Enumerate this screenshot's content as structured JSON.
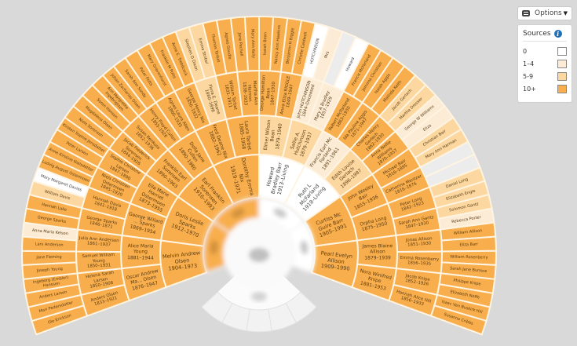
{
  "options": {
    "label": "Options",
    "icon": "sliders-icon",
    "caret": "▼"
  },
  "legend": {
    "title": "Sources",
    "info_icon": "i",
    "items": [
      {
        "label": "0",
        "color": "#ffffff"
      },
      {
        "label": "1–4",
        "color": "#fcecd6"
      },
      {
        "label": "5-9",
        "color": "#fcd8a0"
      },
      {
        "label": "10+",
        "color": "#f8ae4c"
      }
    ]
  },
  "colors": {
    "0": "#ffffff",
    "1-4": "#fcecd6",
    "5-9": "#fcd8a0",
    "10+": "#f8ae4c",
    "none": "#ececec",
    "background": "#d9d9d9"
  },
  "fan": {
    "ring_a": [
      {
        "sources": "10+"
      },
      {
        "sources": "10+"
      },
      {
        "sources": "0"
      },
      {
        "sources": "0"
      }
    ],
    "ring_b": [
      {
        "name": "Melvin Andrew Olsen",
        "dates": "1904–1973",
        "sources": "10+"
      },
      {
        "name": "Doris Leslie Sparks",
        "dates": "1912–1970",
        "sources": "10+"
      },
      {
        "name": "Earl Franklin Sorensen",
        "dates": "1916–1993",
        "sources": "10+"
      },
      {
        "name": "Dorothy Emma Nix",
        "dates": "1919–1971",
        "sources": "10+"
      },
      {
        "name": "Howard Bradley Barr",
        "dates": "1913–Living",
        "sources": "0"
      },
      {
        "name": "Ruth L McFarland",
        "dates": "1918–Living",
        "sources": "0"
      },
      {
        "name": "Curtiss Mc Guire Barr",
        "dates": "1905–1991",
        "sources": "10+"
      },
      {
        "name": "Pearl Evelyn Allison",
        "dates": "1909–1990",
        "sources": "10+"
      }
    ],
    "ring_c": [
      {
        "name": "Oscar Andrew Ma... Olsen",
        "dates": "1876–1947",
        "sources": "10+"
      },
      {
        "name": "Alice Maria Young",
        "dates": "1881–1944",
        "sources": "10+"
      },
      {
        "name": "George Willard ... Sparks",
        "dates": "1869–1954",
        "sources": "10+"
      },
      {
        "name": "Ella Marie Harriet Ostermoen",
        "dates": "1873–1955",
        "sources": "10+"
      },
      {
        "name": "Franklin Earl Sorensen",
        "dates": "1890–1963",
        "sources": "10+"
      },
      {
        "name": "Della Jane Cullen",
        "dates": "1890–1980",
        "sources": "10+"
      },
      {
        "name": "Fred Deane Nix",
        "dates": "1882–1962",
        "sources": "10+"
      },
      {
        "name": "Laura Tarbet",
        "dates": "1885–1958",
        "sources": "10+"
      },
      {
        "name": "Elmer Wilson Bean",
        "dates": "1879–1940",
        "sources": "5-9"
      },
      {
        "name": "Sallie A. Hutchinson",
        "dates": "1879–1937",
        "sources": "5-9"
      },
      {
        "name": "Francis Earl Mc Farland",
        "dates": "1891–1961",
        "sources": "1-4"
      },
      {
        "name": "Edith Louise Gerlach",
        "dates": "1896–1987",
        "sources": "5-9"
      },
      {
        "name": "John Wesley Bair",
        "dates": "1855–1936",
        "sources": "10+"
      },
      {
        "name": "Orpha Long",
        "dates": "1875–1950",
        "sources": "10+"
      },
      {
        "name": "James Blaine Allison",
        "dates": "1879–1939",
        "sources": "10+"
      },
      {
        "name": "Nora Winifred Knipe",
        "dates": "1881–1953",
        "sources": "10+"
      }
    ],
    "ring_d": [
      {
        "name": "Anders Olsen",
        "dates": "1833–1921",
        "sources": "10+"
      },
      {
        "name": "Helena Sarah Larsen",
        "dates": "1850–1908",
        "sources": "10+"
      },
      {
        "name": "Samuel William Young",
        "dates": "1850–1931",
        "sources": "10+"
      },
      {
        "name": "Julia Ann Anderson",
        "dates": "1861–1937",
        "sources": "10+"
      },
      {
        "name": "George Sparks",
        "dates": "1846–1871",
        "sources": "10+"
      },
      {
        "name": "Hannah Davis",
        "dates": "1841–1918",
        "sources": "10+"
      },
      {
        "name": "Niels Christian Ostermoen",
        "dates": "1845–1920",
        "sources": "10+"
      },
      {
        "name": "Sophie Christine Larsen",
        "dates": "1847–1890",
        "sources": "10+"
      },
      {
        "name": "Jacob Frederick Sorensen",
        "dates": "1844–1926",
        "sources": "10+"
      },
      {
        "name": "Susan Renkuss",
        "dates": "1852–1936",
        "sources": "10+"
      },
      {
        "name": "Henry Floyd Cullen",
        "dates": "1855–1926",
        "sources": "10+"
      },
      {
        "name": "Agnes Laura Allen",
        "dates": "1860–1935",
        "sources": "10+"
      },
      {
        "name": "George Henry Nix",
        "dates": "1856–1932",
        "sources": "10+"
      },
      {
        "name": "Flora E. Deane",
        "dates": "1860–1898",
        "sources": "5-9"
      },
      {
        "name": "William Tarbet",
        "dates": "1831–1911",
        "sources": "10+"
      },
      {
        "name": "Martha Ann Harmon",
        "dates": "1838–1933",
        "sources": "10+"
      },
      {
        "name": "George Hamilton Bean",
        "dates": "1847–1930",
        "sources": "10+"
      },
      {
        "name": "Anna Eliza RIGGLE",
        "dates": "1849–1947",
        "sources": "10+"
      },
      {
        "name": "John HUTCHINSON",
        "dates": "1844–Deceased",
        "sources": "1-4"
      },
      {
        "name": "Mary A Bradley",
        "dates": "1857–1929",
        "sources": "1-4"
      },
      {
        "name": "Robert McFarland",
        "dates": "1863–1930",
        "sources": "10+"
      },
      {
        "name": "Ida Pauline Aggis",
        "dates": "1871–1947",
        "sources": "10+"
      },
      {
        "name": "Charles Henry Gerlach",
        "dates": "1862–1930",
        "sources": "10+"
      },
      {
        "name": "Anna Nellie Williams",
        "dates": "1870–1957",
        "sources": "10+"
      },
      {
        "name": "Michael Bair",
        "dates": "1816–1895",
        "sources": "10+"
      },
      {
        "name": "Catherine Mentzer",
        "dates": "1816–1876",
        "sources": "10+"
      },
      {
        "name": "Peter Long",
        "dates": "1842–1923",
        "sources": "10+"
      },
      {
        "name": "Sarah Ann Gantz",
        "dates": "1847–1930",
        "sources": "10+"
      },
      {
        "name": "Jonas Allison",
        "dates": "1851–1930",
        "sources": "10+"
      },
      {
        "name": "Emma Rosenberry",
        "dates": "1856–1935",
        "sources": "10+"
      },
      {
        "name": "Jacob Knipe",
        "dates": "1852–1926",
        "sources": "10+"
      },
      {
        "name": "Hannah Alice Hill",
        "dates": "1856–1933",
        "sources": "10+"
      }
    ],
    "ring_e": [
      {
        "name": "Ole Erickson",
        "sources": "10+"
      },
      {
        "name": "Mari Pedersdatter",
        "sources": "10+"
      },
      {
        "name": "Anders Larsen",
        "sources": "10+"
      },
      {
        "name": "Ingeborg (Embler) Hanssen",
        "sources": "10+"
      },
      {
        "name": "Joseph Young",
        "sources": "10+"
      },
      {
        "name": "Jane Fleming",
        "sources": "10+"
      },
      {
        "name": "Lars Anderson",
        "sources": "10+"
      },
      {
        "name": "Anna Maria Kelson",
        "sources": "1-4"
      },
      {
        "name": "George Sparks",
        "sources": "10+"
      },
      {
        "name": "Hannah Lake",
        "sources": "10+"
      },
      {
        "name": "William Davis",
        "sources": "5-9"
      },
      {
        "name": "Mary Margaret Davies",
        "sources": "0"
      },
      {
        "name": "Ludvig August Ostermoen",
        "sources": "10+"
      },
      {
        "name": "Anne Kirstine Nielsdatter",
        "sources": "10+"
      },
      {
        "name": "Peter Larsen",
        "sources": "10+"
      },
      {
        "name": "Kirsten Sophie Jensdatter",
        "sources": "10+"
      },
      {
        "name": "Niels Sorensen",
        "sources": "10+"
      },
      {
        "name": "Magdalena Olsen",
        "sources": "10+"
      },
      {
        "name": "Soren Hansen",
        "sources": "10+"
      },
      {
        "name": "Ann Margrethe Ingebrigtsen",
        "sources": "10+"
      },
      {
        "name": "Johan Zacharias Olsen",
        "sources": "10+"
      },
      {
        "name": "Sarah Ann Sandy",
        "sources": "10+"
      },
      {
        "name": "Peter Potts",
        "sources": "10+"
      },
      {
        "name": "Mary Gravenhorst",
        "sources": "10+"
      },
      {
        "name": "Franklin M Potts",
        "sources": "10+"
      },
      {
        "name": "Anne E. Trebilcock",
        "sources": "10+"
      },
      {
        "name": "Stephen O Dixon",
        "sources": "5-9"
      },
      {
        "name": "Emma Stribel",
        "sources": "5-9"
      },
      {
        "name": "Thomas Tarbet",
        "sources": "10+"
      },
      {
        "name": "Agnes Goudie",
        "sources": "10+"
      },
      {
        "name": "Jane Pechell",
        "sources": "10+"
      },
      {
        "name": "Mary Ann Kelly",
        "sources": "10+"
      },
      {
        "name": "Isaiah Bean",
        "sources": "10+"
      },
      {
        "name": "Nancy Ann Hawkins",
        "sources": "10+"
      },
      {
        "name": "Benjamin H Riggle",
        "sources": "10+"
      },
      {
        "name": "Christie Caldwell",
        "sources": "10+"
      },
      {
        "name": "HUTCHINSON",
        "sources": "0"
      },
      {
        "name": "Mrs",
        "sources": "1-4"
      },
      {
        "sources": "none"
      },
      {
        "name": "Howard",
        "sources": "0"
      },
      {
        "name": "Francis McFarland",
        "sources": "10+"
      },
      {
        "name": "Jemima Christian",
        "sources": "10+"
      },
      {
        "name": "Isaiah Aggis",
        "sources": "10+"
      },
      {
        "name": "Malinda Keith",
        "sources": "10+"
      },
      {
        "name": "Jacob Gerlach",
        "sources": "5-9"
      },
      {
        "name": "Martha Dresser",
        "sources": "5-9"
      },
      {
        "name": "George W Williams",
        "sources": "1-4"
      },
      {
        "name": "Eliza",
        "sources": "1-4"
      },
      {
        "name": "Christian Bair",
        "sources": "5-9"
      },
      {
        "name": "Mary Ann Harman",
        "sources": "5-9"
      },
      {
        "sources": "none"
      },
      {
        "sources": "none"
      },
      {
        "name": "Daniel Long",
        "sources": "5-9"
      },
      {
        "name": "Elizabeth Engle",
        "sources": "5-9"
      },
      {
        "name": "Solomon Gantz",
        "sources": "5-9"
      },
      {
        "name": "Rebecca Porter",
        "sources": "1-4"
      },
      {
        "name": "William Allison",
        "sources": "10+"
      },
      {
        "name": "Eliza Barr",
        "sources": "10+"
      },
      {
        "name": "William Rosenberry",
        "sources": "10+"
      },
      {
        "name": "Sarah Jane Burress",
        "sources": "10+"
      },
      {
        "name": "Philippe Knipe",
        "sources": "10+"
      },
      {
        "name": "Elizabeth Neffe",
        "sources": "10+"
      },
      {
        "name": "Isaac Van Buskirk Hill",
        "sources": "10+"
      },
      {
        "name": "Susanna Cribbs",
        "sources": "10+"
      }
    ]
  }
}
